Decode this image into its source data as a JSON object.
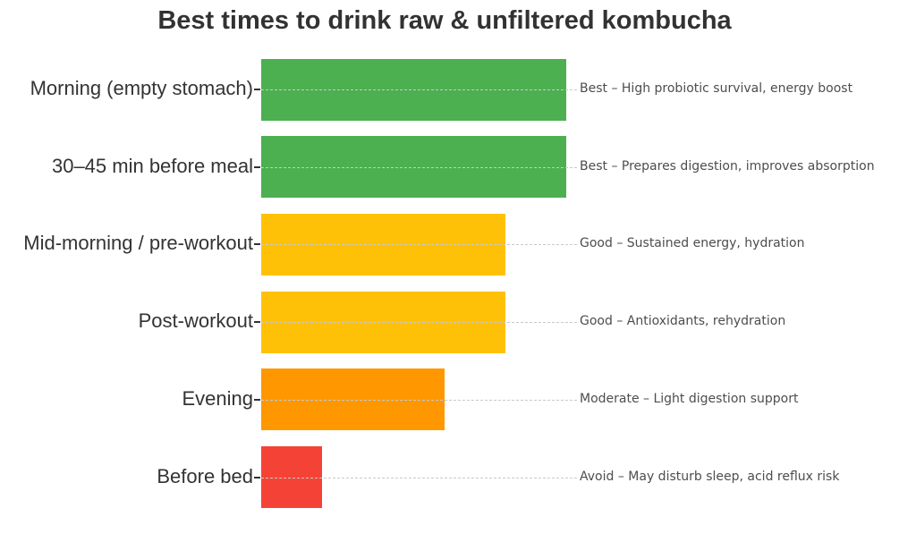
{
  "page": {
    "background": "#ffffff"
  },
  "chart_data": {
    "type": "bar",
    "orientation": "horizontal",
    "title": "Best times to drink raw & unfiltered kombucha",
    "categories": [
      "Morning (empty stomach)",
      "30–45 min before meal",
      "Mid-morning / pre-workout",
      "Post-workout",
      "Evening",
      "Before bed"
    ],
    "values": [
      100,
      100,
      80,
      80,
      60,
      20
    ],
    "xlim": [
      0,
      100
    ],
    "bar_colors": [
      "#4CAF50",
      "#4CAF50",
      "#FFC107",
      "#FFC107",
      "#FF9800",
      "#F44336"
    ],
    "ratings": [
      "Best",
      "Best",
      "Good",
      "Good",
      "Moderate",
      "Avoid"
    ],
    "annotations": [
      "Best – High probiotic survival, energy boost",
      "Best – Prepares digestion, improves absorption",
      "Good – Sustained energy, hydration",
      "Good – Antioxidants, rehydration",
      "Moderate – Light digestion support",
      "Avoid – May disturb sleep, acid reflux risk"
    ],
    "legend": "none",
    "axes": "no visible axis lines; per-row dashed guide lines",
    "guide_color": "#c9c9c9",
    "text_colors": {
      "title": "#323232",
      "category": "#333333",
      "annotation": "#4d4d4d"
    }
  }
}
